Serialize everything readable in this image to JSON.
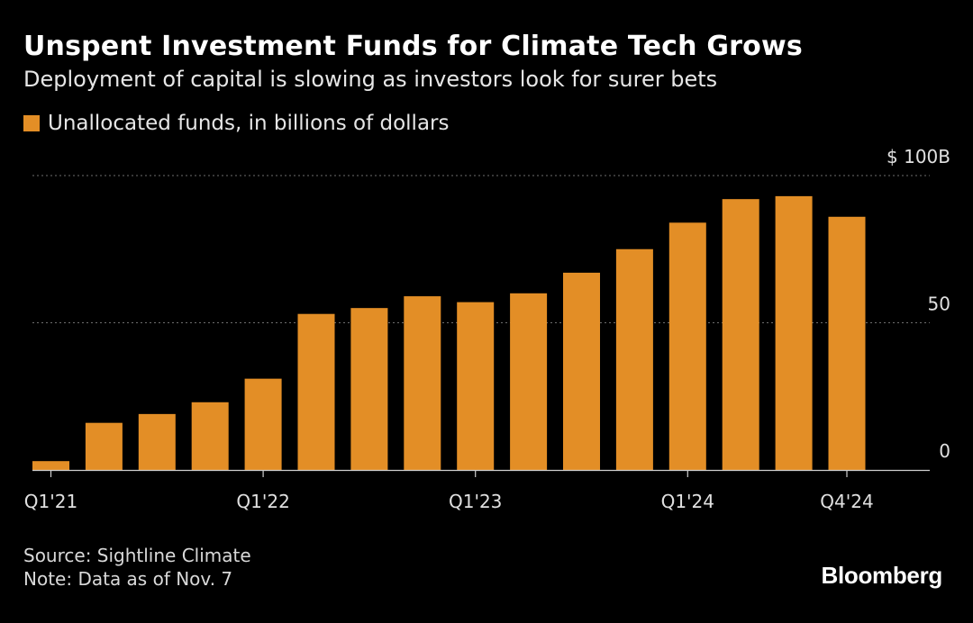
{
  "header": {
    "title": "Unspent Investment Funds for Climate Tech Grows",
    "subtitle": "Deployment of capital is slowing as investors look for surer bets"
  },
  "footer": {
    "source": "Source: Sightline Climate",
    "note": "Note: Data as of Nov. 7",
    "brand": "Bloomberg"
  },
  "colors": {
    "bar": "#E38E26",
    "background": "#000000",
    "gridline": "#6e6e6e"
  },
  "chart_data": {
    "type": "bar",
    "categories": [
      "Q1'21",
      "Q2'21",
      "Q3'21",
      "Q4'21",
      "Q1'22",
      "Q2'22",
      "Q3'22",
      "Q4'22",
      "Q1'23",
      "Q2'23",
      "Q3'23",
      "Q4'23",
      "Q1'24",
      "Q2'24",
      "Q3'24",
      "Q4'24"
    ],
    "series": [
      {
        "name": "Unallocated funds, in billions of dollars",
        "values": [
          3,
          16,
          19,
          23,
          31,
          53,
          55,
          59,
          57,
          60,
          67,
          75,
          84,
          92,
          93,
          86
        ]
      }
    ],
    "ylim": [
      0,
      100
    ],
    "yticks": [
      {
        "value": 0,
        "label": "0"
      },
      {
        "value": 50,
        "label": "50"
      },
      {
        "value": 100,
        "label": "$ 100B"
      }
    ],
    "xtick_labels": [
      {
        "index": 0,
        "label": "Q1'21"
      },
      {
        "index": 4,
        "label": "Q1'22"
      },
      {
        "index": 8,
        "label": "Q1'23"
      },
      {
        "index": 12,
        "label": "Q1'24"
      },
      {
        "index": 15,
        "label": "Q4'24"
      }
    ],
    "grid": "horizontal dotted",
    "legend": "top-left"
  }
}
